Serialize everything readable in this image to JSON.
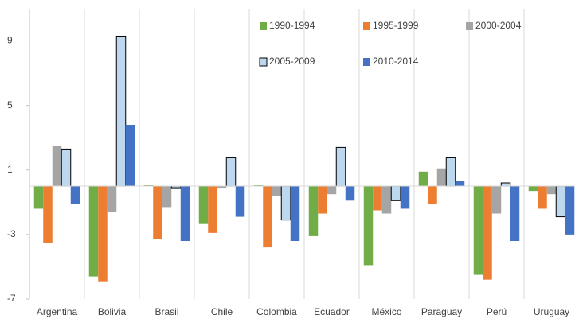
{
  "chart_data": {
    "type": "bar",
    "categories": [
      "Argentina",
      "Bolivia",
      "Brasil",
      "Chile",
      "Colombia",
      "Ecuador",
      "México",
      "Paraguay",
      "Perú",
      "Uruguay"
    ],
    "series": [
      {
        "name": "1990-1994",
        "color": "#70ad47",
        "values": [
          -1.4,
          -5.6,
          0.05,
          -2.3,
          0.05,
          -3.1,
          -4.9,
          0.9,
          -5.5,
          -0.3
        ]
      },
      {
        "name": "1995-1999",
        "color": "#ed7d31",
        "values": [
          -3.5,
          -5.9,
          -3.3,
          -2.9,
          -3.8,
          -1.7,
          -1.5,
          -1.1,
          -5.8,
          -1.4
        ]
      },
      {
        "name": "2000-2004",
        "color": "#a5a5a5",
        "values": [
          2.5,
          -1.6,
          -1.3,
          -0.1,
          -0.6,
          -0.5,
          -1.7,
          1.1,
          -1.7,
          -0.5
        ]
      },
      {
        "name": "2005-2009",
        "color": "#bdd7ee",
        "edgecolor": "#000000",
        "values": [
          2.3,
          9.3,
          -0.1,
          1.8,
          -2.1,
          2.4,
          -0.9,
          1.8,
          0.2,
          -1.9
        ]
      },
      {
        "name": "2010-2014",
        "color": "#4472c4",
        "values": [
          -1.1,
          3.8,
          -3.4,
          -1.9,
          -3.4,
          -0.9,
          -1.4,
          0.3,
          -3.4,
          -3.0
        ]
      }
    ],
    "ylim": [
      -7,
      11
    ],
    "yticks": [
      -7,
      -3,
      1,
      5,
      9
    ],
    "legend": "top-right"
  }
}
